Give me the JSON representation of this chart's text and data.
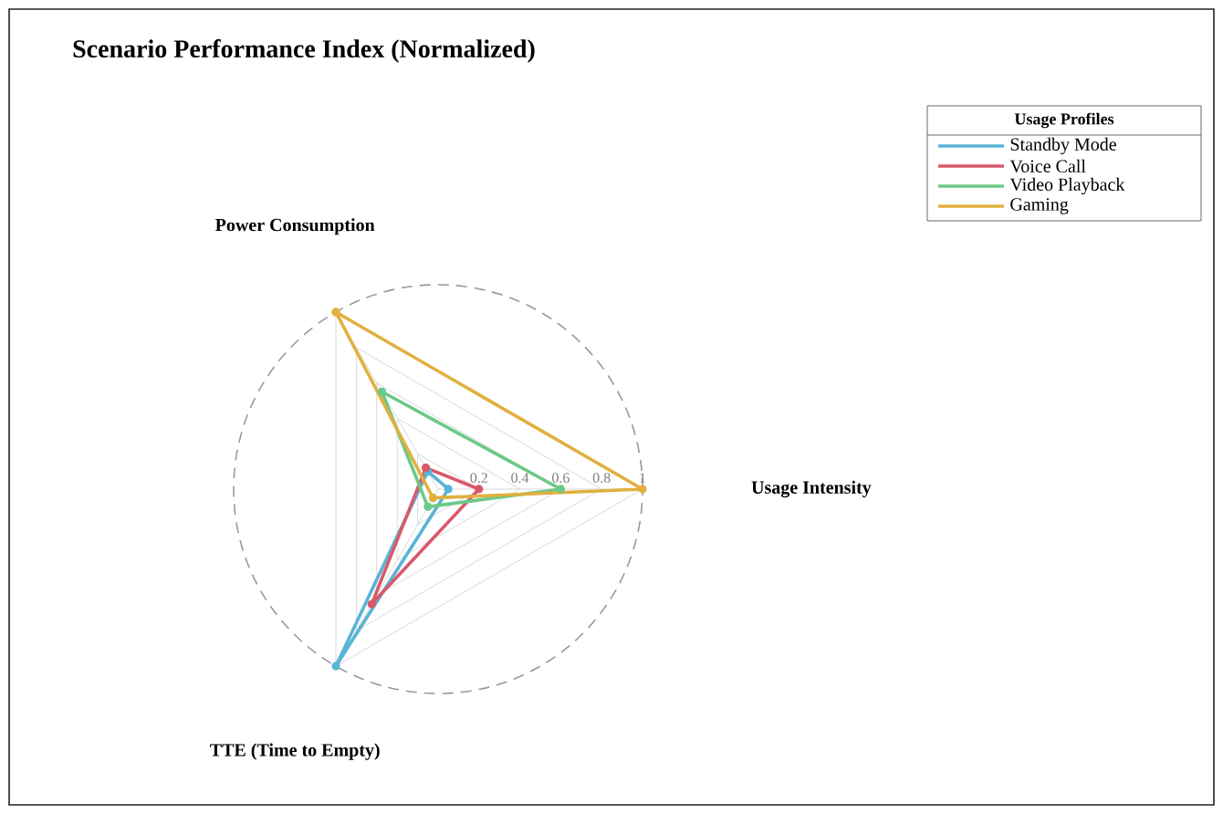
{
  "chart_data": {
    "type": "radar",
    "title": "Scenario Performance Index (Normalized)",
    "legend_title": "Usage Profiles",
    "categories": [
      "Power Consumption",
      "Usage Intensity",
      "TTE (Time to Empty)"
    ],
    "series": [
      {
        "name": "Standby Mode",
        "color": "#5ab4d6",
        "values": [
          0.1,
          0.05,
          1.0
        ]
      },
      {
        "name": "Voice Call",
        "color": "#d9596b",
        "values": [
          0.12,
          0.2,
          0.65
        ]
      },
      {
        "name": "Video Playback",
        "color": "#6cc987",
        "values": [
          0.55,
          0.6,
          0.1
        ]
      },
      {
        "name": "Gaming",
        "color": "#e0b040",
        "values": [
          1.0,
          1.0,
          0.05
        ]
      }
    ],
    "ylim": [
      0,
      1
    ],
    "yticks": [
      0.2,
      0.4,
      0.6,
      0.8,
      1
    ],
    "grid": true,
    "legend": "top right",
    "marker": "circle"
  }
}
